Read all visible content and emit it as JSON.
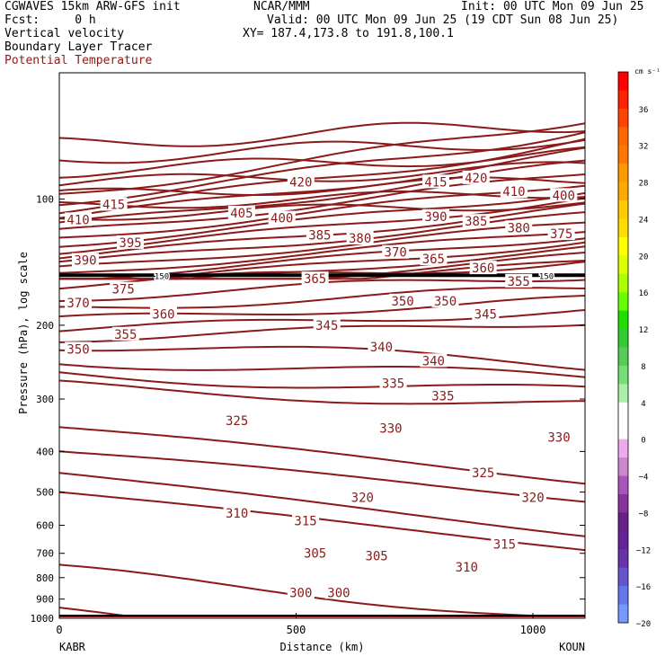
{
  "header": {
    "line1_left": "CGWAVES 15km ARW-GFS init",
    "line1_mid": "NCAR/MMM",
    "line1_right": "Init: 00 UTC Mon 09 Jun 25",
    "line2_left": "Fcst:     0 h",
    "line2_right": "Valid: 00 UTC Mon 09 Jun 25 (19 CDT Sun 08 Jun 25)",
    "line3_left": "Vertical velocity",
    "line3_mid": "XY= 187.4,173.8 to 191.8,100.1",
    "line4_left": "Boundary Layer Tracer",
    "line5_left": "Potential Temperature"
  },
  "colors": {
    "contour": "#8b1a1a",
    "frame": "#000000"
  },
  "colorbar": {
    "unit": "cm s⁻¹",
    "labels": [
      "36",
      "32",
      "28",
      "24",
      "20",
      "16",
      "12",
      "8",
      "4",
      "0",
      "−4",
      "−8",
      "−12",
      "−16",
      "−20"
    ],
    "colors": [
      "#ff0000",
      "#ff2200",
      "#ff4400",
      "#ff6600",
      "#ff7700",
      "#ff9900",
      "#ffaa00",
      "#ffcc00",
      "#ffdd00",
      "#ffff00",
      "#ddff00",
      "#aaff00",
      "#66ff00",
      "#22dd00",
      "#33cc33",
      "#55cc55",
      "#77dd77",
      "#aaeeaa",
      "#ffffff",
      "#ffffff",
      "#eeaaee",
      "#cc88cc",
      "#aa55bb",
      "#883399",
      "#662288",
      "#662299",
      "#6633aa",
      "#6655cc",
      "#6677ee",
      "#7799ff"
    ]
  },
  "chart_data": {
    "type": "contour",
    "title": "Potential Temperature",
    "xlabel": "Distance (km)",
    "ylabel": "Pressure (hPa), log scale",
    "xlim": [
      0,
      1110
    ],
    "ylim": [
      1000,
      50
    ],
    "y_scale": "log",
    "x_ticks": [
      {
        "value": 0,
        "label": "0"
      },
      {
        "value": 500,
        "label": "500"
      },
      {
        "value": 1000,
        "label": "1000"
      }
    ],
    "y_ticks": [
      {
        "value": 100,
        "label": "100"
      },
      {
        "value": 200,
        "label": "200"
      },
      {
        "value": 300,
        "label": "300"
      },
      {
        "value": 400,
        "label": "400"
      },
      {
        "value": 500,
        "label": "500"
      },
      {
        "value": 600,
        "label": "600"
      },
      {
        "value": 700,
        "label": "700"
      },
      {
        "value": 800,
        "label": "800"
      },
      {
        "value": 900,
        "label": "900"
      },
      {
        "value": 1000,
        "label": "1000"
      }
    ],
    "endpoints": {
      "left": "KABR",
      "right": "KOUN"
    },
    "boundary_layer_top_label": "150",
    "contour_levels": [
      300,
      305,
      310,
      315,
      320,
      325,
      330,
      335,
      340,
      345,
      350,
      355,
      360,
      365,
      370,
      375,
      380,
      385,
      390,
      395,
      400,
      405,
      410,
      415,
      420
    ],
    "contour_labels": [
      {
        "text": "420",
        "x": 510,
        "p": 91
      },
      {
        "text": "415",
        "x": 795,
        "p": 91
      },
      {
        "text": "420",
        "x": 880,
        "p": 89
      },
      {
        "text": "415",
        "x": 115,
        "p": 103
      },
      {
        "text": "410",
        "x": 40,
        "p": 112
      },
      {
        "text": "410",
        "x": 960,
        "p": 96
      },
      {
        "text": "400",
        "x": 1065,
        "p": 98
      },
      {
        "text": "405",
        "x": 385,
        "p": 108
      },
      {
        "text": "400",
        "x": 470,
        "p": 111
      },
      {
        "text": "390",
        "x": 795,
        "p": 110
      },
      {
        "text": "385",
        "x": 880,
        "p": 113
      },
      {
        "text": "380",
        "x": 970,
        "p": 117
      },
      {
        "text": "375",
        "x": 1060,
        "p": 121
      },
      {
        "text": "395",
        "x": 150,
        "p": 127
      },
      {
        "text": "385",
        "x": 550,
        "p": 122
      },
      {
        "text": "380",
        "x": 635,
        "p": 124
      },
      {
        "text": "370",
        "x": 710,
        "p": 134
      },
      {
        "text": "365",
        "x": 790,
        "p": 139
      },
      {
        "text": "360",
        "x": 895,
        "p": 146
      },
      {
        "text": "390",
        "x": 55,
        "p": 140
      },
      {
        "text": "365",
        "x": 540,
        "p": 155
      },
      {
        "text": "355",
        "x": 970,
        "p": 157
      },
      {
        "text": "375",
        "x": 135,
        "p": 164
      },
      {
        "text": "370",
        "x": 40,
        "p": 177
      },
      {
        "text": "360",
        "x": 220,
        "p": 188
      },
      {
        "text": "350",
        "x": 725,
        "p": 175
      },
      {
        "text": "350",
        "x": 815,
        "p": 175
      },
      {
        "text": "345",
        "x": 565,
        "p": 200
      },
      {
        "text": "345",
        "x": 900,
        "p": 188
      },
      {
        "text": "355",
        "x": 140,
        "p": 210
      },
      {
        "text": "350",
        "x": 40,
        "p": 228
      },
      {
        "text": "340",
        "x": 680,
        "p": 225
      },
      {
        "text": "340",
        "x": 790,
        "p": 243
      },
      {
        "text": "335",
        "x": 705,
        "p": 275
      },
      {
        "text": "335",
        "x": 810,
        "p": 295
      },
      {
        "text": "325",
        "x": 375,
        "p": 338
      },
      {
        "text": "330",
        "x": 700,
        "p": 352
      },
      {
        "text": "330",
        "x": 1055,
        "p": 370
      },
      {
        "text": "325",
        "x": 895,
        "p": 450
      },
      {
        "text": "320",
        "x": 640,
        "p": 515
      },
      {
        "text": "320",
        "x": 1000,
        "p": 515
      },
      {
        "text": "310",
        "x": 375,
        "p": 562
      },
      {
        "text": "315",
        "x": 520,
        "p": 585
      },
      {
        "text": "315",
        "x": 940,
        "p": 665
      },
      {
        "text": "305",
        "x": 540,
        "p": 700
      },
      {
        "text": "305",
        "x": 670,
        "p": 710
      },
      {
        "text": "310",
        "x": 860,
        "p": 755
      },
      {
        "text": "300",
        "x": 510,
        "p": 868
      },
      {
        "text": "300",
        "x": 590,
        "p": 868
      }
    ]
  }
}
